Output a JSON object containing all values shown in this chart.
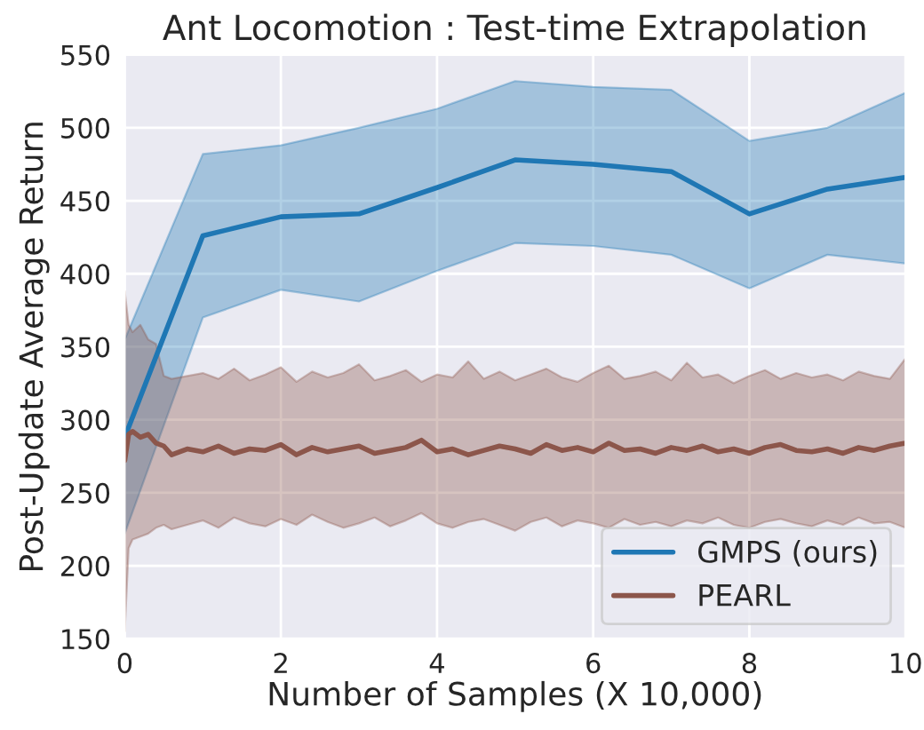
{
  "chart_data": {
    "type": "line",
    "title": "Ant Locomotion : Test-time Extrapolation",
    "xlabel": "Number of Samples (X 10,000)",
    "ylabel": "Post-Update Average Return",
    "xlim": [
      0,
      10
    ],
    "ylim": [
      150,
      550
    ],
    "xticks": [
      0,
      2,
      4,
      6,
      8,
      10
    ],
    "yticks": [
      150,
      200,
      250,
      300,
      350,
      400,
      450,
      500,
      550
    ],
    "grid": true,
    "legend": "bottom right",
    "marker": "none",
    "line_style": "solid",
    "series": [
      {
        "name": "GMPS (ours)",
        "color": "#1f77b4",
        "x": [
          0,
          1,
          2,
          3,
          4,
          5,
          6,
          7,
          8,
          9,
          10
        ],
        "values": [
          288,
          426,
          439,
          441,
          459,
          478,
          475,
          470,
          441,
          458,
          466
        ],
        "upper": [
          355,
          482,
          488,
          500,
          513,
          532,
          528,
          526,
          491,
          500,
          524
        ],
        "lower": [
          222,
          370,
          389,
          381,
          402,
          421,
          419,
          413,
          390,
          413,
          407
        ]
      },
      {
        "name": "PEARL",
        "color": "#8c564b",
        "x": [
          0,
          0.05,
          0.1,
          0.2,
          0.3,
          0.4,
          0.5,
          0.6,
          0.8,
          1.0,
          1.2,
          1.4,
          1.6,
          1.8,
          2.0,
          2.2,
          2.4,
          2.6,
          2.8,
          3.0,
          3.2,
          3.4,
          3.6,
          3.8,
          4.0,
          4.2,
          4.4,
          4.6,
          4.8,
          5.0,
          5.2,
          5.4,
          5.6,
          5.8,
          6.0,
          6.2,
          6.4,
          6.6,
          6.8,
          7.0,
          7.2,
          7.4,
          7.6,
          7.8,
          8.0,
          8.2,
          8.4,
          8.6,
          8.8,
          9.0,
          9.2,
          9.4,
          9.6,
          9.8,
          10.0
        ],
        "values": [
          272,
          290,
          292,
          288,
          290,
          284,
          282,
          276,
          280,
          278,
          282,
          277,
          280,
          279,
          283,
          276,
          281,
          278,
          280,
          282,
          277,
          279,
          281,
          286,
          278,
          280,
          276,
          279,
          282,
          280,
          277,
          283,
          279,
          281,
          278,
          284,
          279,
          280,
          277,
          281,
          279,
          282,
          278,
          280,
          277,
          281,
          283,
          279,
          278,
          280,
          277,
          281,
          279,
          282,
          284
        ],
        "upper": [
          388,
          365,
          360,
          365,
          355,
          352,
          330,
          328,
          330,
          332,
          328,
          335,
          327,
          331,
          336,
          326,
          333,
          329,
          332,
          338,
          327,
          330,
          334,
          326,
          331,
          329,
          340,
          328,
          333,
          327,
          331,
          335,
          329,
          326,
          332,
          337,
          328,
          330,
          333,
          327,
          339,
          329,
          331,
          325,
          330,
          334,
          328,
          332,
          329,
          331,
          327,
          333,
          330,
          328,
          342
        ],
        "lower": [
          155,
          212,
          218,
          220,
          222,
          226,
          228,
          225,
          228,
          231,
          226,
          233,
          229,
          227,
          232,
          228,
          235,
          230,
          226,
          229,
          233,
          227,
          231,
          236,
          229,
          226,
          230,
          232,
          228,
          224,
          230,
          233,
          227,
          231,
          229,
          226,
          232,
          228,
          230,
          227,
          231,
          229,
          233,
          228,
          226,
          230,
          232,
          229,
          227,
          231,
          228,
          233,
          229,
          230,
          226
        ]
      }
    ]
  }
}
